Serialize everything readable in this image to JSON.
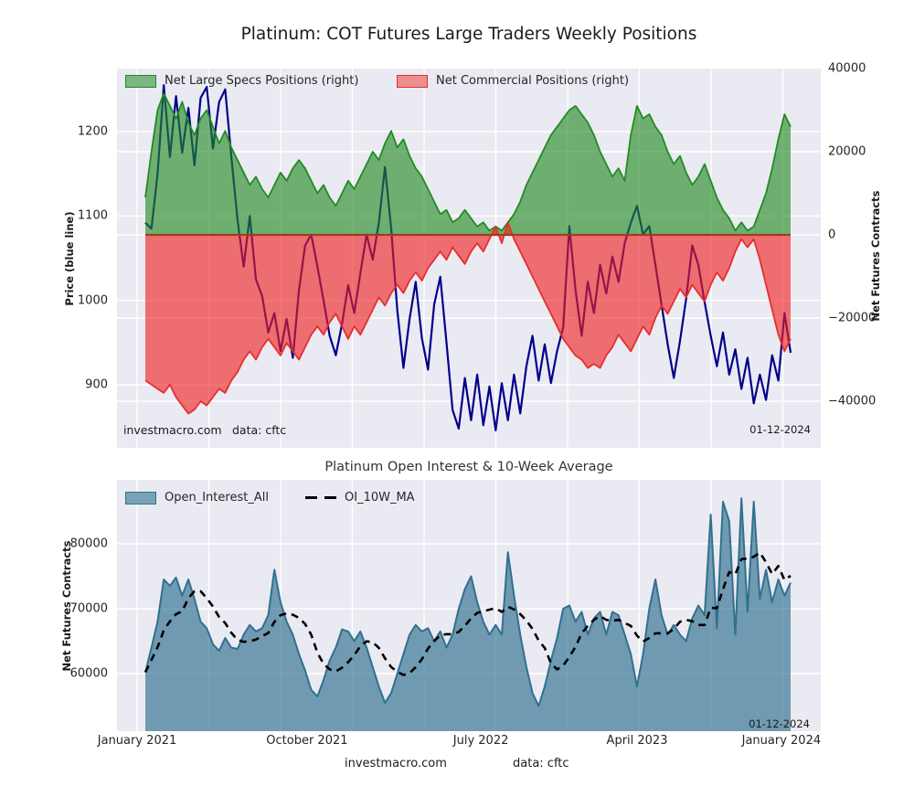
{
  "figure": {
    "title": "Platinum: COT Futures Large Traders Weekly Positions",
    "footer": {
      "site": "investmacro.com",
      "source": "data: cftc"
    }
  },
  "top_chart": {
    "legend": [
      {
        "label": "Net Large Specs Positions (right)",
        "color": "#228B22"
      },
      {
        "label": "Net Commercial Positions (right)",
        "color": "#E62E2E"
      }
    ],
    "left_axis": {
      "title": "Price (blue line)",
      "ticks": [
        "1200",
        "1100",
        "1000",
        "900"
      ]
    },
    "right_axis": {
      "title": "Net Futures Contracts",
      "ticks": [
        "40000",
        "20000",
        "0",
        "−20000",
        "−40000"
      ]
    },
    "watermark": {
      "site": "investmacro.com",
      "source": "data: cftc"
    },
    "date_annotation": "01-12-2024"
  },
  "bottom_chart": {
    "title": "Platinum Open Interest & 10-Week Average",
    "legend": [
      {
        "label": "Open_Interest_All",
        "color": "#31708F"
      },
      {
        "label": "OI_10W_MA",
        "color": "#000000"
      }
    ],
    "left_axis": {
      "title": "Net Futures Contracts",
      "ticks": [
        "80000",
        "70000",
        "60000"
      ]
    },
    "date_annotation": "01-12-2024"
  },
  "chart_data": [
    {
      "type": "area",
      "title": "Platinum: COT Futures Large Traders Weekly Positions",
      "x_axis": "weekly, January 2021 to January 2024",
      "left_ylabel": "Price (blue line)",
      "right_ylabel": "Net Futures Contracts",
      "left_ylim": [
        825,
        1275
      ],
      "right_ylim": [
        -51200,
        40000
      ],
      "left_yticks": [
        1200,
        1100,
        1000,
        900
      ],
      "right_yticks": [
        40000,
        20000,
        0,
        -20000,
        -40000
      ],
      "grid": true,
      "legend_position": "upper left",
      "colors": {
        "specs_fill": "#228B22",
        "commercial_fill": "#E62E2E",
        "price_line": "#00008B",
        "zero_line": "#9A4020"
      },
      "series": [
        {
          "name": "Price",
          "axis": "left",
          "style": "line",
          "values": [
            1092,
            1085,
            1150,
            1255,
            1170,
            1242,
            1175,
            1228,
            1160,
            1240,
            1253,
            1180,
            1235,
            1250,
            1170,
            1095,
            1040,
            1100,
            1025,
            1005,
            962,
            985,
            940,
            978,
            932,
            1012,
            1065,
            1078,
            1040,
            1000,
            958,
            935,
            972,
            1018,
            985,
            1032,
            1078,
            1048,
            1092,
            1158,
            1085,
            988,
            920,
            978,
            1022,
            955,
            918,
            995,
            1028,
            950,
            870,
            848,
            908,
            858,
            912,
            852,
            898,
            846,
            902,
            858,
            912,
            866,
            922,
            958,
            905,
            948,
            902,
            940,
            968,
            1088,
            1012,
            958,
            1022,
            985,
            1042,
            1008,
            1052,
            1022,
            1068,
            1092,
            1112,
            1078,
            1088,
            1042,
            995,
            948,
            908,
            952,
            1002,
            1065,
            1042,
            998,
            958,
            922,
            962,
            912,
            942,
            895,
            932,
            878,
            912,
            882,
            935,
            905,
            985,
            938
          ]
        },
        {
          "name": "Net Large Specs Positions (right)",
          "axis": "right",
          "style": "area",
          "values": [
            9000,
            20000,
            30000,
            34000,
            31000,
            28000,
            32000,
            27000,
            24000,
            28000,
            30000,
            26000,
            22000,
            25000,
            21000,
            18000,
            15000,
            12000,
            14000,
            11000,
            9000,
            12000,
            15000,
            13000,
            16000,
            18000,
            16000,
            13000,
            10000,
            12000,
            9000,
            7000,
            10000,
            13000,
            11000,
            14000,
            17000,
            20000,
            18000,
            22000,
            25000,
            21000,
            23000,
            19000,
            16000,
            14000,
            11000,
            8000,
            5000,
            6000,
            3000,
            4000,
            6000,
            4000,
            2000,
            3000,
            1000,
            2000,
            1000,
            3000,
            5000,
            8000,
            12000,
            15000,
            18000,
            21000,
            24000,
            26000,
            28000,
            30000,
            31000,
            29000,
            27000,
            24000,
            20000,
            17000,
            14000,
            16000,
            13000,
            24000,
            31000,
            28000,
            29000,
            26000,
            24000,
            20000,
            17000,
            19000,
            15000,
            12000,
            14000,
            17000,
            13000,
            9000,
            6000,
            4000,
            1000,
            3000,
            1000,
            2000,
            6000,
            10000,
            16000,
            23000,
            29000,
            26000
          ]
        },
        {
          "name": "Net Commercial Positions (right)",
          "axis": "right",
          "style": "area",
          "values": [
            -35000,
            -36000,
            -37000,
            -38000,
            -36000,
            -39000,
            -41000,
            -43000,
            -42000,
            -40000,
            -41000,
            -39000,
            -37000,
            -38000,
            -35000,
            -33000,
            -30000,
            -28000,
            -30000,
            -27000,
            -25000,
            -27000,
            -29000,
            -26000,
            -28000,
            -30000,
            -27000,
            -24000,
            -22000,
            -24000,
            -21000,
            -19000,
            -22000,
            -25000,
            -22000,
            -24000,
            -21000,
            -18000,
            -15000,
            -17000,
            -14000,
            -12000,
            -14000,
            -11000,
            -9000,
            -11000,
            -8000,
            -6000,
            -4000,
            -6000,
            -3000,
            -5000,
            -7000,
            -4000,
            -2000,
            -4000,
            -1000,
            2000,
            -2000,
            3000,
            -1000,
            -4000,
            -7000,
            -10000,
            -13000,
            -16000,
            -19000,
            -22000,
            -25000,
            -27000,
            -29000,
            -30000,
            -32000,
            -31000,
            -32000,
            -29000,
            -27000,
            -24000,
            -26000,
            -28000,
            -25000,
            -22000,
            -24000,
            -20000,
            -17000,
            -19000,
            -16000,
            -13000,
            -15000,
            -12000,
            -14000,
            -16000,
            -12000,
            -9000,
            -11000,
            -8000,
            -4000,
            -1000,
            -3000,
            -1000,
            -6000,
            -12000,
            -18000,
            -24000,
            -28000,
            -25000
          ]
        }
      ],
      "annotations": [
        "investmacro.com",
        "data: cftc",
        "01-12-2024"
      ]
    },
    {
      "type": "area",
      "title": "Platinum Open Interest & 10-Week Average",
      "ylabel": "Net Futures Contracts",
      "ylim": [
        51100,
        89900
      ],
      "yticks": [
        80000,
        70000,
        60000
      ],
      "grid": true,
      "legend_position": "upper left",
      "colors": {
        "oi_fill": "#31708F",
        "ma_line": "#000000"
      },
      "x_ticks": [
        {
          "label": "January 2021",
          "pos": 0.0286
        },
        {
          "label": "October 2021",
          "pos": 0.27
        },
        {
          "label": "July 2022",
          "pos": 0.517
        },
        {
          "label": "April 2023",
          "pos": 0.739
        },
        {
          "label": "January 2024",
          "pos": 0.944
        }
      ],
      "series": [
        {
          "name": "Open_Interest_All",
          "style": "area",
          "values": [
            60200,
            64000,
            68000,
            74500,
            73500,
            74800,
            72000,
            74500,
            71500,
            68000,
            67000,
            64500,
            63500,
            65500,
            64000,
            63800,
            66000,
            67500,
            66500,
            67000,
            69000,
            76000,
            71000,
            68000,
            66000,
            63000,
            60500,
            57500,
            56500,
            59000,
            62000,
            64000,
            66800,
            66500,
            65000,
            66500,
            64000,
            61000,
            58000,
            55500,
            57000,
            60000,
            63000,
            66000,
            67500,
            66500,
            67000,
            65000,
            66500,
            64000,
            66000,
            70000,
            73000,
            75000,
            71000,
            68000,
            66000,
            67500,
            66000,
            78700,
            72000,
            66000,
            61000,
            57000,
            55000,
            58000,
            62000,
            65500,
            70000,
            70500,
            68000,
            69500,
            66000,
            68500,
            69500,
            66000,
            69500,
            69000,
            66000,
            63000,
            58000,
            63000,
            70000,
            74500,
            69000,
            66000,
            67500,
            66000,
            65000,
            68500,
            70500,
            69000,
            84500,
            67000,
            86500,
            83500,
            66000,
            87000,
            69500,
            86500,
            71500,
            76000,
            71000,
            74500,
            72000,
            74000
          ]
        },
        {
          "name": "OI_10W_MA",
          "style": "dashed-line",
          "derived": "10-week moving average of Open_Interest_All"
        }
      ],
      "annotations": [
        "01-12-2024",
        "investmacro.com",
        "data: cftc"
      ]
    }
  ]
}
